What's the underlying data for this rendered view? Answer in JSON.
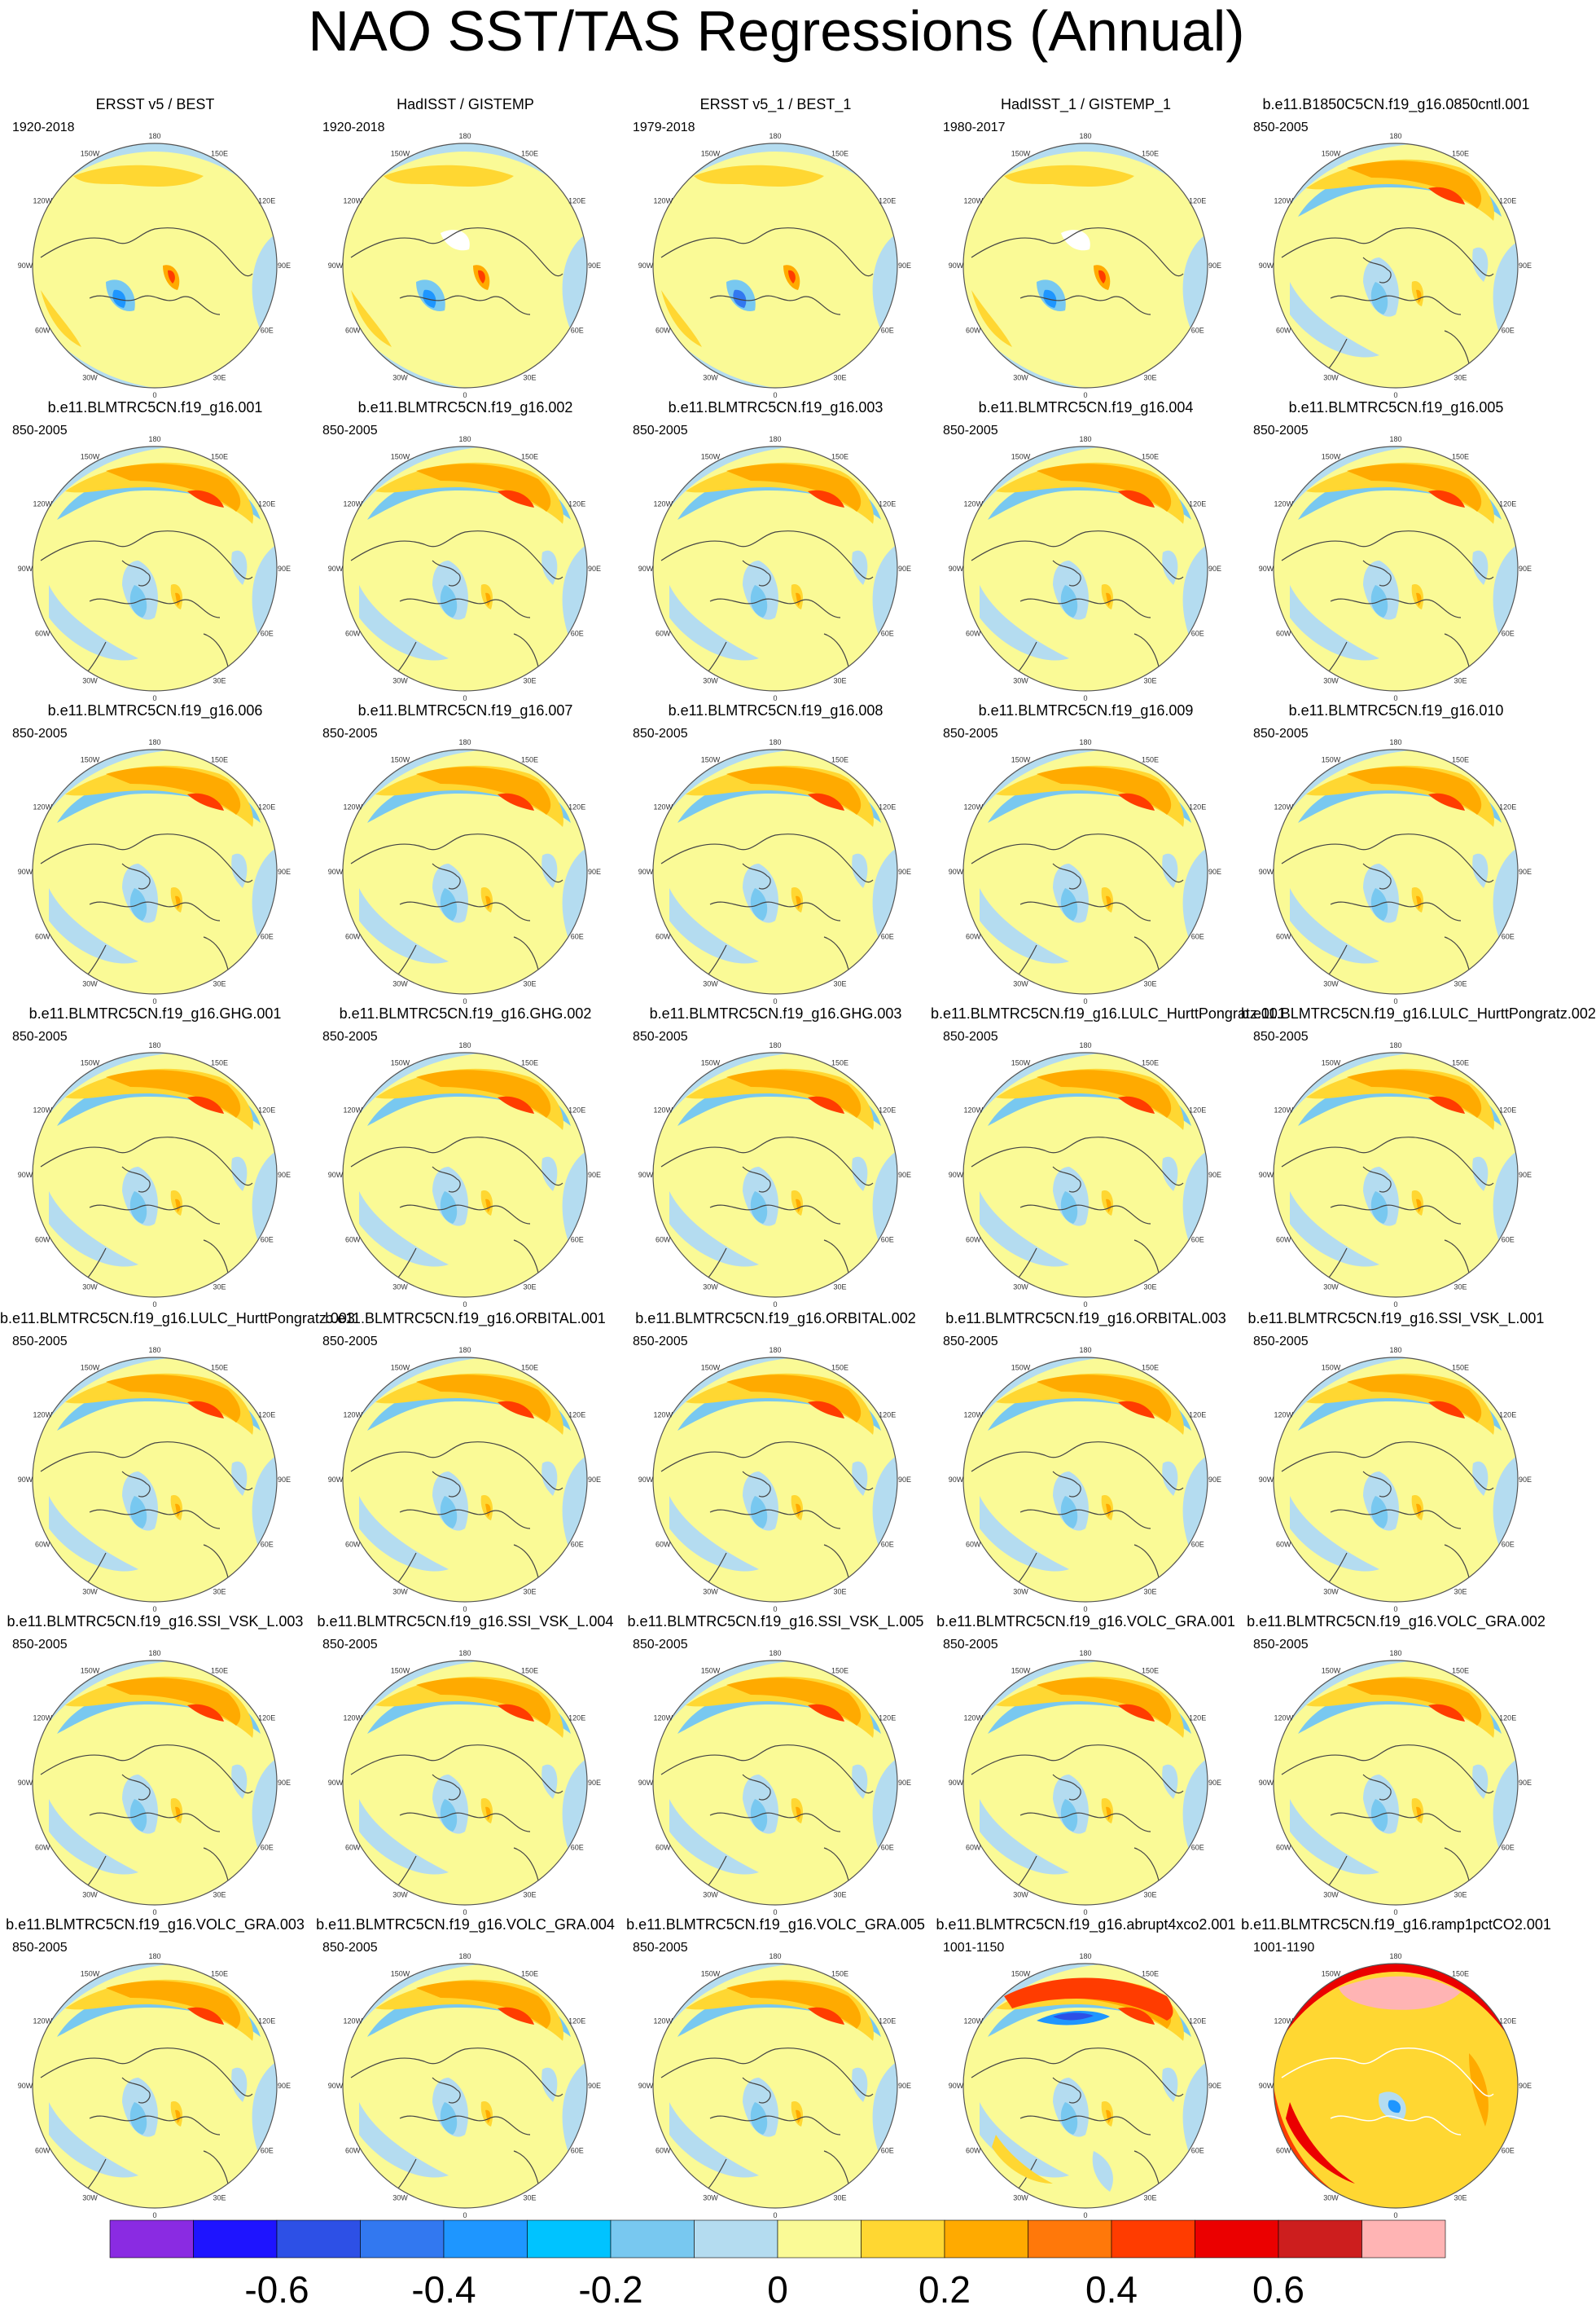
{
  "title": "NAO SST/TAS Regressions (Annual)",
  "map_lon_labels": [
    "180",
    "150E",
    "120E",
    "90E",
    "60E",
    "30E",
    "0",
    "30W",
    "60W",
    "90W",
    "120W",
    "150W"
  ],
  "panels": [
    {
      "title": "ERSST v5 / BEST",
      "period": "1920-2018",
      "style": "obs_a"
    },
    {
      "title": "HadISST / GISTEMP",
      "period": "1920-2018",
      "style": "obs_b"
    },
    {
      "title": "ERSST v5_1 / BEST_1",
      "period": "1979-2018",
      "style": "obs_c"
    },
    {
      "title": "HadISST_1 / GISTEMP_1",
      "period": "1980-2017",
      "style": "obs_d"
    },
    {
      "title": "b.e11.B1850C5CN.f19_g16.0850cntl.001",
      "period": "850-2005",
      "style": "model"
    },
    {
      "title": "b.e11.BLMTRC5CN.f19_g16.001",
      "period": "850-2005",
      "style": "model"
    },
    {
      "title": "b.e11.BLMTRC5CN.f19_g16.002",
      "period": "850-2005",
      "style": "model"
    },
    {
      "title": "b.e11.BLMTRC5CN.f19_g16.003",
      "period": "850-2005",
      "style": "model"
    },
    {
      "title": "b.e11.BLMTRC5CN.f19_g16.004",
      "period": "850-2005",
      "style": "model"
    },
    {
      "title": "b.e11.BLMTRC5CN.f19_g16.005",
      "period": "850-2005",
      "style": "model"
    },
    {
      "title": "b.e11.BLMTRC5CN.f19_g16.006",
      "period": "850-2005",
      "style": "model"
    },
    {
      "title": "b.e11.BLMTRC5CN.f19_g16.007",
      "period": "850-2005",
      "style": "model"
    },
    {
      "title": "b.e11.BLMTRC5CN.f19_g16.008",
      "period": "850-2005",
      "style": "model"
    },
    {
      "title": "b.e11.BLMTRC5CN.f19_g16.009",
      "period": "850-2005",
      "style": "model"
    },
    {
      "title": "b.e11.BLMTRC5CN.f19_g16.010",
      "period": "850-2005",
      "style": "model"
    },
    {
      "title": "b.e11.BLMTRC5CN.f19_g16.GHG.001",
      "period": "850-2005",
      "style": "model"
    },
    {
      "title": "b.e11.BLMTRC5CN.f19_g16.GHG.002",
      "period": "850-2005",
      "style": "model"
    },
    {
      "title": "b.e11.BLMTRC5CN.f19_g16.GHG.003",
      "period": "850-2005",
      "style": "model"
    },
    {
      "title": "b.e11.BLMTRC5CN.f19_g16.LULC_HurttPongratz.001",
      "period": "850-2005",
      "style": "model"
    },
    {
      "title": "b.e11.BLMTRC5CN.f19_g16.LULC_HurttPongratz.002",
      "period": "850-2005",
      "style": "model"
    },
    {
      "title": "b.e11.BLMTRC5CN.f19_g16.LULC_HurttPongratz.003",
      "period": "850-2005",
      "style": "model"
    },
    {
      "title": "b.e11.BLMTRC5CN.f19_g16.ORBITAL.001",
      "period": "850-2005",
      "style": "model"
    },
    {
      "title": "b.e11.BLMTRC5CN.f19_g16.ORBITAL.002",
      "period": "850-2005",
      "style": "model"
    },
    {
      "title": "b.e11.BLMTRC5CN.f19_g16.ORBITAL.003",
      "period": "850-2005",
      "style": "model"
    },
    {
      "title": "b.e11.BLMTRC5CN.f19_g16.SSI_VSK_L.001",
      "period": "850-2005",
      "style": "model"
    },
    {
      "title": "b.e11.BLMTRC5CN.f19_g16.SSI_VSK_L.003",
      "period": "850-2005",
      "style": "model"
    },
    {
      "title": "b.e11.BLMTRC5CN.f19_g16.SSI_VSK_L.004",
      "period": "850-2005",
      "style": "model"
    },
    {
      "title": "b.e11.BLMTRC5CN.f19_g16.SSI_VSK_L.005",
      "period": "850-2005",
      "style": "model"
    },
    {
      "title": "b.e11.BLMTRC5CN.f19_g16.VOLC_GRA.001",
      "period": "850-2005",
      "style": "model"
    },
    {
      "title": "b.e11.BLMTRC5CN.f19_g16.VOLC_GRA.002",
      "period": "850-2005",
      "style": "model"
    },
    {
      "title": "b.e11.BLMTRC5CN.f19_g16.VOLC_GRA.003",
      "period": "850-2005",
      "style": "model"
    },
    {
      "title": "b.e11.BLMTRC5CN.f19_g16.VOLC_GRA.004",
      "period": "850-2005",
      "style": "model"
    },
    {
      "title": "b.e11.BLMTRC5CN.f19_g16.VOLC_GRA.005",
      "period": "850-2005",
      "style": "model"
    },
    {
      "title": "b.e11.BLMTRC5CN.f19_g16.abrupt4xco2.001",
      "period": "1001-1150",
      "style": "abrupt"
    },
    {
      "title": "b.e11.BLMTRC5CN.f19_g16.ramp1pctCO2.001",
      "period": "1001-1190",
      "style": "ramp"
    }
  ],
  "colorbar": {
    "colors": [
      "#8a2be2",
      "#1e14ff",
      "#2d50e6",
      "#3278f0",
      "#1e96ff",
      "#00c3ff",
      "#78c8f0",
      "#b4dcf0",
      "#fafa96",
      "#ffd732",
      "#ffaa00",
      "#ff780a",
      "#ff3c00",
      "#eb0000",
      "#cd1e1e",
      "#ffb4b4"
    ],
    "levels": [
      -0.7,
      -0.6,
      -0.5,
      -0.4,
      -0.3,
      -0.2,
      -0.1,
      0,
      0.1,
      0.2,
      0.3,
      0.4,
      0.5,
      0.6,
      0.7
    ],
    "tick_labels": [
      "-0.6",
      "-0.4",
      "-0.2",
      "0",
      "0.2",
      "0.4",
      "0.6"
    ]
  },
  "chart_data": {
    "type": "heatmap",
    "title": "NAO SST/TAS Regressions (Annual)",
    "projection": "north polar stereographic",
    "panel_count": 35,
    "colorbar_levels": [
      -0.7,
      -0.6,
      -0.5,
      -0.4,
      -0.3,
      -0.2,
      -0.1,
      0,
      0.1,
      0.2,
      0.3,
      0.4,
      0.5,
      0.6,
      0.7
    ],
    "colorbar_tick_labels": [
      "-0.6",
      "-0.4",
      "-0.2",
      "0",
      "0.2",
      "0.4",
      "0.6"
    ]
  }
}
